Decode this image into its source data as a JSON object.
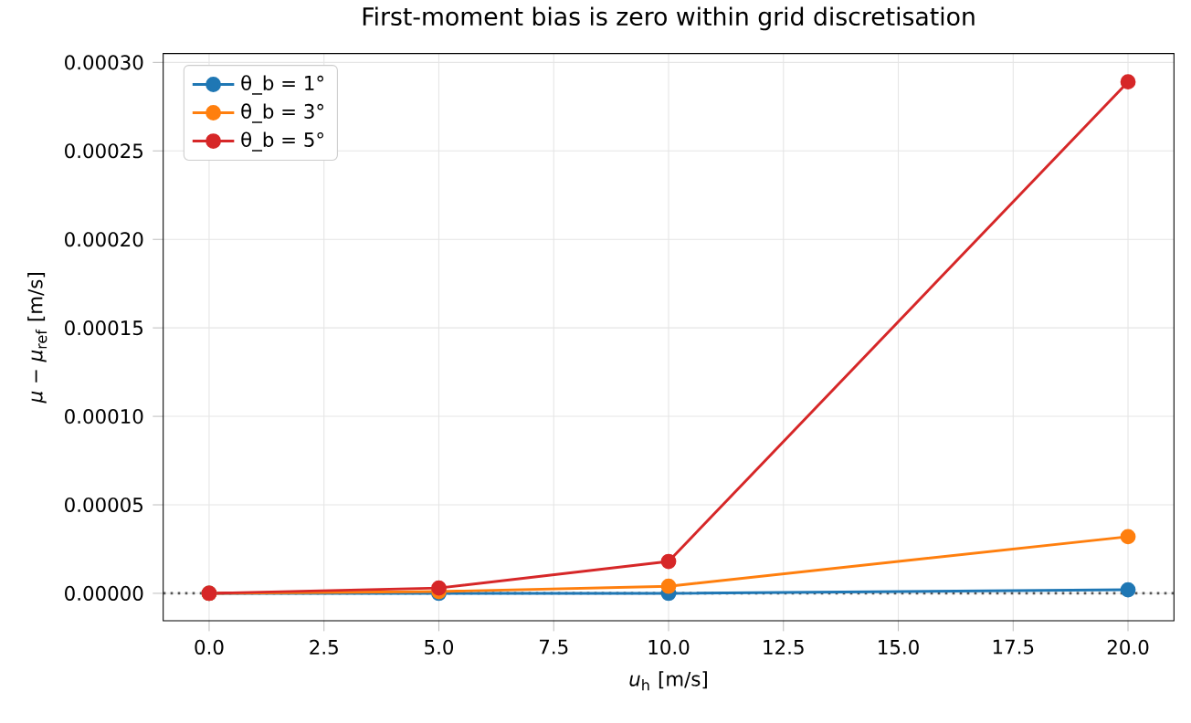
{
  "chart_data": {
    "type": "line",
    "title": "First-moment bias is zero within grid discretisation",
    "xlabel": "*u*$_{h}$ [m/s]",
    "ylabel": "*μ* − *μ*$_{ref}$ [m/s]",
    "x": [
      0,
      5,
      10,
      20
    ],
    "series": [
      {
        "name": "θ_b = 1°",
        "color": "#1f77b4",
        "values": [
          0,
          0,
          0,
          2e-06
        ]
      },
      {
        "name": "θ_b = 3°",
        "color": "#ff7f0e",
        "values": [
          0,
          1e-06,
          4e-06,
          3.2e-05
        ]
      },
      {
        "name": "θ_b = 5°",
        "color": "#d62728",
        "values": [
          0,
          3e-06,
          1.8e-05,
          0.000289
        ]
      }
    ],
    "xlim": [
      -1,
      21
    ],
    "ylim": [
      -1.55e-05,
      0.000305
    ],
    "xticks": [
      {
        "value": 0,
        "label": "0.0"
      },
      {
        "value": 2.5,
        "label": "2.5"
      },
      {
        "value": 5,
        "label": "5.0"
      },
      {
        "value": 7.5,
        "label": "7.5"
      },
      {
        "value": 10,
        "label": "10.0"
      },
      {
        "value": 12.5,
        "label": "12.5"
      },
      {
        "value": 15,
        "label": "15.0"
      },
      {
        "value": 17.5,
        "label": "17.5"
      },
      {
        "value": 20,
        "label": "20.0"
      }
    ],
    "yticks": [
      {
        "value": 0,
        "label": "0.00000"
      },
      {
        "value": 5e-05,
        "label": "0.00005"
      },
      {
        "value": 0.0001,
        "label": "0.00010"
      },
      {
        "value": 0.00015,
        "label": "0.00015"
      },
      {
        "value": 0.0002,
        "label": "0.00020"
      },
      {
        "value": 0.00025,
        "label": "0.00025"
      },
      {
        "value": 0.0003,
        "label": "0.00030"
      }
    ],
    "ref_lines": [
      {
        "axis": "y",
        "value": 0,
        "color": "#555555",
        "line_style": "dotted"
      }
    ],
    "grid": true,
    "legend": "top left",
    "marker": "circle",
    "line_style": "solid"
  }
}
